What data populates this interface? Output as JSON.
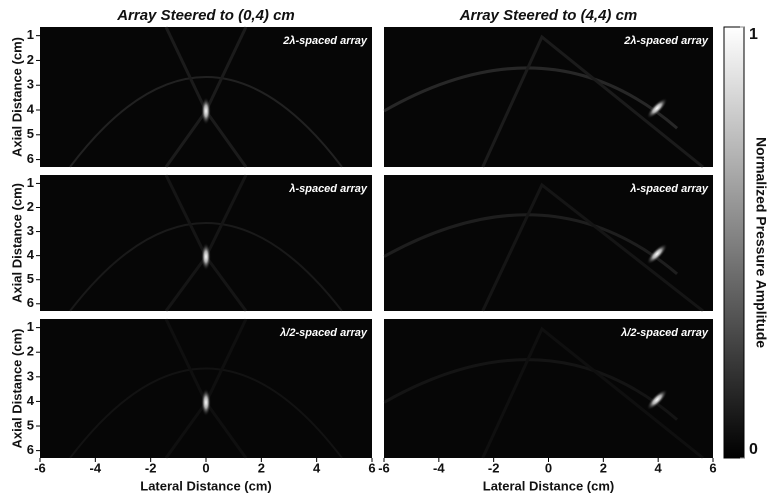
{
  "chart_data": [
    {
      "type": "heatmap",
      "title": "Array Steered to (0,4) cm",
      "annotation": "2λ-spaced array",
      "ylabel": "Axial Distance (cm)",
      "xlim": [
        -6,
        6
      ],
      "ylim": [
        0.65,
        6.3
      ],
      "yticks": [
        1,
        2,
        3,
        4,
        5,
        6
      ]
    },
    {
      "type": "heatmap",
      "title": "Array Steered to (4,4) cm",
      "annotation": "2λ-spaced array",
      "xlim": [
        -6,
        6
      ],
      "ylim": [
        0.65,
        6.3
      ]
    },
    {
      "type": "heatmap",
      "annotation": "λ-spaced array",
      "ylabel": "Axial Distance (cm)",
      "xlim": [
        -6,
        6
      ],
      "ylim": [
        0.65,
        6.3
      ],
      "yticks": [
        1,
        2,
        3,
        4,
        5,
        6
      ]
    },
    {
      "type": "heatmap",
      "annotation": "λ-spaced array",
      "xlim": [
        -6,
        6
      ],
      "ylim": [
        0.65,
        6.3
      ]
    },
    {
      "type": "heatmap",
      "annotation": "λ/2-spaced array",
      "ylabel": "Axial Distance (cm)",
      "xlabel": "Lateral Distance (cm)",
      "xlim": [
        -6,
        6
      ],
      "ylim": [
        0.65,
        6.3
      ],
      "yticks": [
        1,
        2,
        3,
        4,
        5,
        6
      ],
      "xticks": [
        -6,
        -4,
        -2,
        0,
        2,
        4,
        6
      ]
    },
    {
      "type": "heatmap",
      "annotation": "λ/2-spaced array",
      "xlabel": "Lateral Distance (cm)",
      "xlim": [
        -6,
        6
      ],
      "ylim": [
        0.65,
        6.3
      ],
      "xticks": [
        -6,
        -4,
        -2,
        0,
        2,
        4,
        6
      ]
    },
    {
      "type": "colorbar",
      "label": "Normalized Pressure Amplitude",
      "ylim": [
        0,
        1
      ],
      "yticks": [
        0,
        1
      ]
    }
  ]
}
